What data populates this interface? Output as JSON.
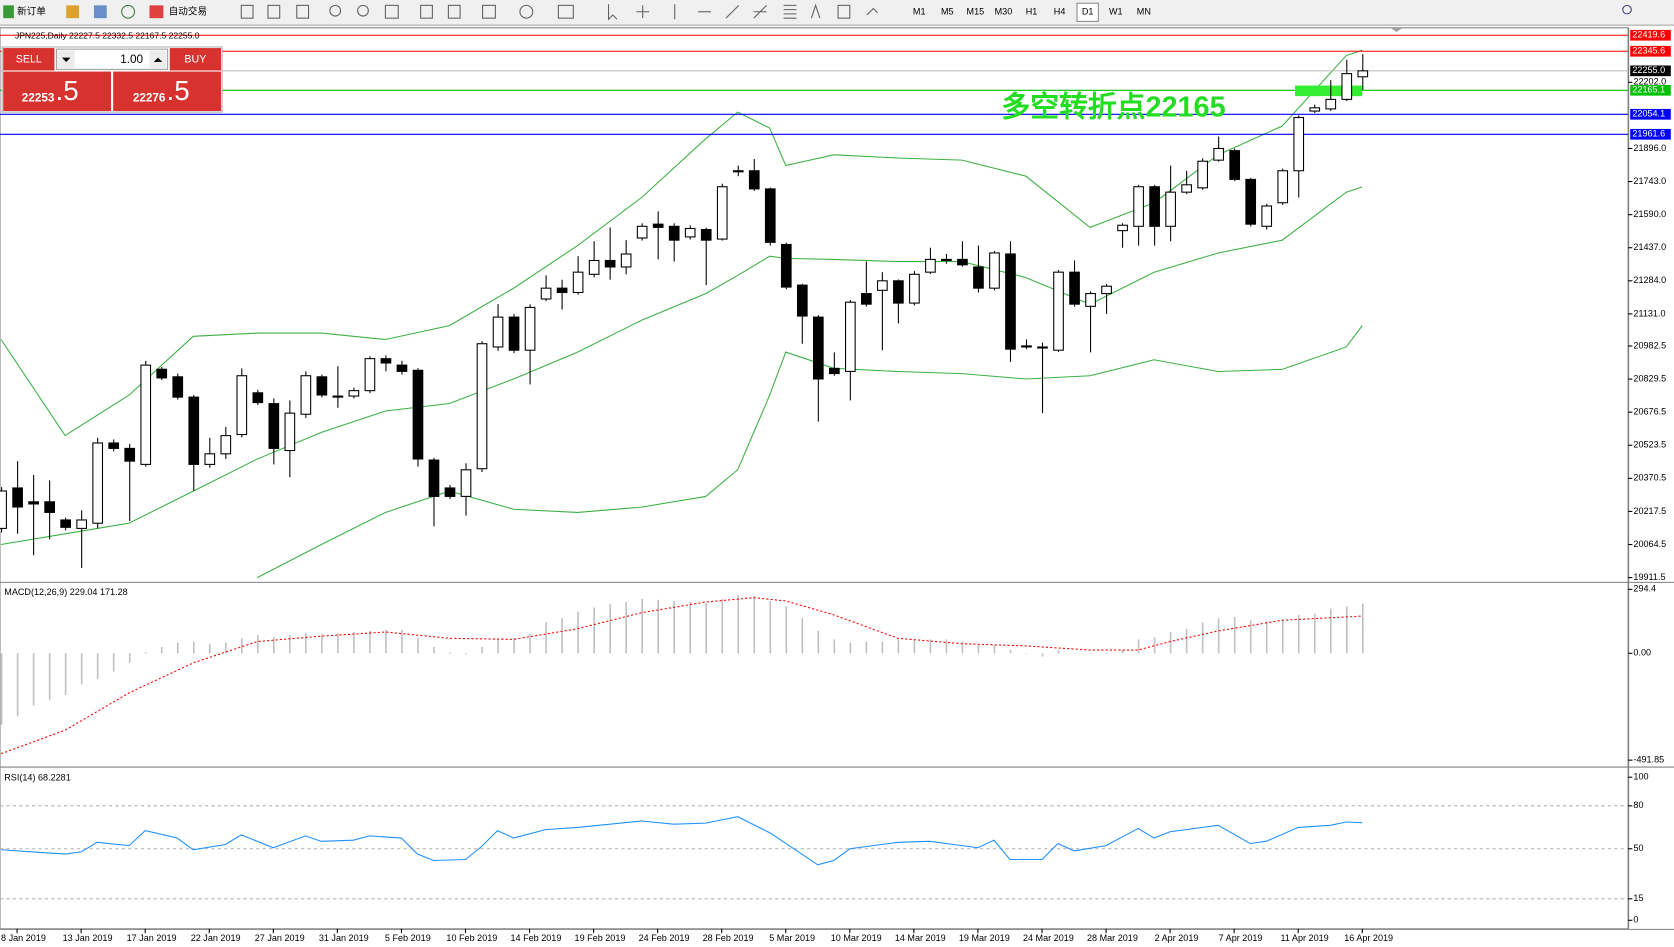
{
  "toolbar": {
    "new_order": "新订单",
    "auto_trading": "自动交易",
    "timeframes": [
      "M1",
      "M5",
      "M15",
      "M30",
      "H1",
      "H4",
      "D1",
      "W1",
      "MN"
    ],
    "active_timeframe": "D1"
  },
  "trade_panel": {
    "sell": "SELL",
    "buy": "BUY",
    "lots": "1.00",
    "bid_big": "22253",
    "bid_small": ".5",
    "ask_big": "22276",
    "ask_small": ".5"
  },
  "chart_data": [
    {
      "type": "candlestick",
      "header": "JPN225,Daily  22227.5 22332.5 22167.5 22255.0",
      "categories": [
        null,
        "8 Jan 2019",
        null,
        null,
        null,
        "13 Jan 2019",
        null,
        null,
        null,
        "17 Jan 2019",
        null,
        null,
        null,
        "22 Jan 2019",
        null,
        null,
        null,
        "27 Jan 2019",
        null,
        null,
        null,
        "31 Jan 2019",
        null,
        null,
        null,
        "5 Feb 2019",
        null,
        null,
        null,
        "10 Feb 2019",
        null,
        null,
        null,
        "14 Feb 2019",
        null,
        null,
        null,
        "19 Feb 2019",
        null,
        null,
        null,
        "24 Feb 2019",
        null,
        null,
        null,
        "28 Feb 2019",
        null,
        null,
        null,
        "5 Mar 2019",
        null,
        null,
        null,
        "10 Mar 2019",
        null,
        null,
        null,
        "14 Mar 2019",
        null,
        null,
        null,
        "19 Mar 2019",
        null,
        null,
        null,
        "24 Mar 2019",
        null,
        null,
        null,
        "28 Mar 2019",
        null,
        null,
        null,
        "2 Apr 2019",
        null,
        null,
        null,
        "7 Apr 2019",
        null,
        null,
        null,
        "11 Apr 2019",
        null,
        null,
        null,
        "16 Apr 2019"
      ],
      "open": [
        20139,
        20326,
        20262,
        20262,
        20178,
        20139,
        20163,
        20534,
        20509,
        20435,
        20875,
        20840,
        20746,
        20435,
        20484,
        20573,
        20766,
        20716,
        20499,
        20667,
        20840,
        20751,
        20751,
        20776,
        20924,
        20894,
        20870,
        20455,
        20326,
        20287,
        20415,
        20978,
        21116,
        20963,
        21200,
        21250,
        21230,
        21314,
        21378,
        21348,
        21482,
        21546,
        21536,
        21487,
        21521,
        21477,
        21793,
        21793,
        21709,
        21452,
        21264,
        21116,
        20879,
        20865,
        21225,
        21240,
        21284,
        21181,
        21324,
        21383,
        21383,
        21348,
        21250,
        21408,
        20983,
        20978,
        20963,
        21324,
        21166,
        21225,
        21516,
        21536,
        21719,
        21536,
        21694,
        21714,
        21842,
        21886,
        21753,
        21536,
        21645,
        21793,
        22069,
        22079,
        22123,
        22227.5
      ],
      "high": [
        20330,
        20450,
        20386,
        20361,
        20188,
        20223,
        20558,
        20550,
        20530,
        20914,
        20885,
        20855,
        20756,
        20558,
        20608,
        20879,
        20780,
        20740,
        20731,
        20865,
        20850,
        20889,
        20790,
        20935,
        20939,
        20914,
        20880,
        20465,
        20340,
        20440,
        21005,
        21176,
        21130,
        21175,
        21309,
        21289,
        21398,
        21467,
        21531,
        21472,
        21550,
        21605,
        21550,
        21540,
        21530,
        21733,
        21817,
        21847,
        21715,
        21460,
        21270,
        21125,
        20953,
        21195,
        21373,
        21324,
        21290,
        21329,
        21437,
        21408,
        21467,
        21447,
        21422,
        21467,
        21013,
        20998,
        21334,
        21378,
        21235,
        21269,
        21550,
        21728,
        21728,
        21817,
        21793,
        21850,
        21951,
        21895,
        21760,
        21640,
        21803,
        22049,
        22099,
        22212,
        22306,
        22332.5
      ],
      "low": [
        20120,
        20114,
        20015,
        20089,
        20130,
        19956,
        20139,
        20495,
        20173,
        20425,
        20825,
        20735,
        20312,
        20420,
        20460,
        20560,
        20710,
        20435,
        20376,
        20650,
        20745,
        20697,
        20740,
        20765,
        20865,
        20850,
        20425,
        20149,
        20275,
        20198,
        20400,
        20960,
        20950,
        20805,
        21190,
        21151,
        21220,
        21300,
        21289,
        21314,
        21470,
        21383,
        21373,
        21475,
        21264,
        21470,
        21768,
        21700,
        21447,
        21245,
        20993,
        20633,
        20845,
        20731,
        21165,
        20963,
        21087,
        21170,
        21315,
        21363,
        21350,
        21230,
        21240,
        20909,
        20968,
        20672,
        20955,
        21165,
        20953,
        21131,
        21437,
        21447,
        21447,
        21467,
        21685,
        21705,
        21835,
        21745,
        21536,
        21521,
        21635,
        21669,
        22060,
        22070,
        22115,
        22167.5
      ],
      "close": [
        20312,
        20238,
        20252,
        20213,
        20144,
        20178,
        20534,
        20509,
        20450,
        20894,
        20835,
        20746,
        20435,
        20484,
        20568,
        20845,
        20721,
        20509,
        20672,
        20845,
        20756,
        20751,
        20776,
        20924,
        20904,
        20865,
        20460,
        20287,
        20287,
        20410,
        20993,
        21116,
        20963,
        21161,
        21250,
        21230,
        21324,
        21378,
        21348,
        21408,
        21536,
        21531,
        21472,
        21526,
        21472,
        21719,
        21793,
        21709,
        21462,
        21255,
        21121,
        20830,
        20855,
        21185,
        21176,
        21284,
        21181,
        21314,
        21383,
        21383,
        21358,
        21250,
        21413,
        20968,
        20983,
        20978,
        21324,
        21176,
        21225,
        21259,
        21541,
        21719,
        21536,
        21694,
        21728,
        21837,
        21896,
        21753,
        21546,
        21630,
        21793,
        22039,
        22084,
        22123,
        22242,
        22255.0
      ],
      "up_color": "#ffffff",
      "down_color": "#000000",
      "ylim": [
        19911.5,
        22419.6
      ],
      "yticks": [
        {
          "value": 22202,
          "label": "22202.0"
        },
        {
          "value": 21896,
          "label": "21896.0"
        },
        {
          "value": 21743,
          "label": "21743.0"
        },
        {
          "value": 21590,
          "label": "21590.0"
        },
        {
          "value": 21437,
          "label": "21437.0"
        },
        {
          "value": 21284,
          "label": "21284.0"
        },
        {
          "value": 21131,
          "label": "21131.0"
        },
        20982.5,
        20829.5,
        20676.5,
        20523.5,
        20370.5,
        20217.5,
        20064.5,
        19911.5
      ],
      "price_lines": [
        {
          "value": 22419.6,
          "label": "22419.6",
          "color": "#ff0000",
          "box": "#ff0000"
        },
        {
          "value": 22345.6,
          "label": "22345.6",
          "color": "#ff0000",
          "box": "#ff0000"
        },
        {
          "value": 22255,
          "label": "22255.0",
          "color": "#c0c0c0",
          "box": "#000000"
        },
        {
          "value": 22165.1,
          "label": "22165.1",
          "color": "#00c000",
          "box": "#00c000"
        },
        {
          "value": 22054.1,
          "label": "22054.1",
          "color": "#0000ff",
          "box": "#0000ff"
        },
        {
          "value": 21961.6,
          "label": "21961.6",
          "color": "#0000ff",
          "box": "#0000ff"
        }
      ],
      "bands": {
        "color": "#3cb043",
        "x": [
          0,
          4,
          8,
          12,
          16,
          20,
          24,
          28,
          32,
          36,
          40,
          44,
          46,
          48,
          49,
          52,
          56,
          60,
          64,
          68,
          72,
          76,
          80,
          84,
          85
        ],
        "upper": [
          21012.6,
          20568.3,
          20756,
          21027.3,
          21042.2,
          21042.2,
          21012.6,
          21076.7,
          21249.6,
          21447.1,
          21669.2,
          21940.7,
          22064.1,
          21990,
          21817.3,
          21866.6,
          21851.8,
          21842,
          21767.9,
          21530.9,
          21644.5,
          21866.6,
          21999.9,
          22325.8,
          22350.5
        ],
        "middle": [
          20064.6,
          20114,
          20163.4,
          20311.5,
          20459.7,
          20583.2,
          20681.9,
          20716.5,
          20830,
          20954.4,
          21101.4,
          21224.9,
          21308.8,
          21397.7,
          21387.8,
          21382.9,
          21373,
          21373,
          21298.9,
          21175.5,
          21323.6,
          21412.5,
          21471.7,
          21693.8,
          21718.5
        ],
        "lower": [
          null,
          null,
          null,
          null,
          19911.5,
          20064.6,
          20212.8,
          20311.5,
          20227.6,
          20212.8,
          20237.5,
          20286.8,
          20410.3,
          20756,
          20954.4,
          20879.4,
          20864.6,
          20854.7,
          20830,
          20844.8,
          20918.8,
          20864.6,
          20874.5,
          20978.1,
          21076.7
        ]
      },
      "zone": {
        "range": [
          22138,
          22187
        ],
        "color": "#33ee33"
      },
      "annotation": {
        "text": "多空转折点22165",
        "color": "#22dd22"
      }
    },
    {
      "type": "macd",
      "label": "MACD(12,26,9) 229.04 171.28",
      "values": [
        -329,
        -290,
        -241,
        -216,
        -192,
        -143,
        -118,
        -84,
        -44,
        5,
        29,
        49,
        54,
        44,
        49,
        69,
        84,
        74,
        84,
        93,
        88,
        93,
        98,
        103,
        108,
        108,
        69,
        29,
        5,
        -5,
        29,
        69,
        69,
        88,
        143,
        162,
        192,
        211,
        226,
        236,
        251,
        246,
        241,
        236,
        231,
        251,
        270,
        265,
        241,
        216,
        162,
        103,
        64,
        49,
        54,
        54,
        64,
        64,
        64,
        64,
        54,
        39,
        39,
        15,
        0,
        -15,
        15,
        0,
        0,
        0,
        15,
        64,
        74,
        98,
        113,
        143,
        162,
        167,
        152,
        147,
        152,
        177,
        182,
        206,
        216,
        229.04
      ],
      "color": "#c0c0c0",
      "signal": {
        "color": "#ff0000",
        "x": [
          0,
          4,
          8,
          12,
          16,
          20,
          24,
          28,
          32,
          36,
          40,
          44,
          47,
          49,
          52,
          56,
          60,
          64,
          68,
          71,
          73,
          76,
          80,
          85
        ],
        "values": [
          -462,
          -354,
          -182,
          -44,
          54,
          79,
          98,
          69,
          64,
          113,
          187,
          236,
          256,
          241,
          177,
          69,
          44,
          34,
          15,
          15,
          54,
          103,
          152,
          171.28
        ]
      },
      "ylim": [
        -491.85,
        294.4
      ],
      "yticks": [
        294.4,
        {
          "value": 0,
          "label": "0.00"
        },
        -491.85
      ]
    },
    {
      "type": "line",
      "label": "RSI(14) 68.2281",
      "color": "#1e90ff",
      "x": [
        0,
        2,
        4,
        5,
        6,
        8,
        9,
        11,
        12,
        14,
        15,
        17,
        19,
        20,
        22,
        23,
        25,
        26,
        27,
        29,
        30,
        31,
        32,
        34,
        36,
        40,
        42,
        44,
        46,
        48,
        50,
        51,
        52,
        53,
        56,
        58,
        60,
        61,
        62,
        63,
        65,
        66,
        67,
        69,
        71,
        72,
        73,
        76,
        78,
        79,
        81,
        83,
        84,
        85
      ],
      "values": [
        49.3,
        47.8,
        46.3,
        47.8,
        54.5,
        52.2,
        62.7,
        57.5,
        49.3,
        53,
        59.7,
        50.7,
        59,
        55.2,
        56,
        59,
        57.5,
        46.3,
        41.8,
        42.5,
        51.5,
        62.7,
        57.5,
        63.4,
        64.9,
        69.4,
        67.2,
        67.9,
        72.4,
        61.2,
        46.3,
        38.8,
        41.8,
        50,
        54.5,
        55.2,
        52.2,
        50.7,
        56,
        42.5,
        42.5,
        53.7,
        48.5,
        52.2,
        64.2,
        57.5,
        61.9,
        66.4,
        53.7,
        55.2,
        64.9,
        66.4,
        68.7,
        68.2281
      ],
      "ylim": [
        0,
        100
      ],
      "yticks": [
        100,
        80,
        50,
        15,
        0
      ],
      "levels": [
        80,
        50,
        15
      ]
    }
  ]
}
